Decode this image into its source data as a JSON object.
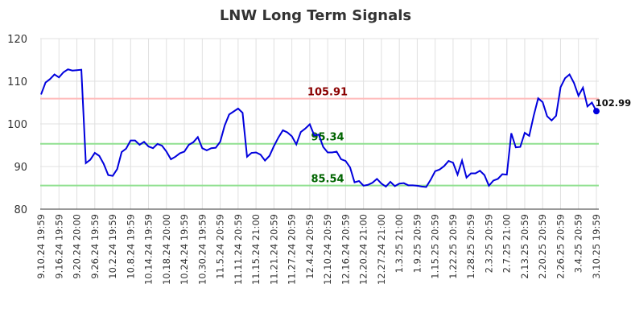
{
  "chart_data": {
    "type": "line",
    "title": "LNW Long Term Signals",
    "xlabel": "",
    "ylabel": "",
    "ylim": [
      80,
      120
    ],
    "yticks": [
      80,
      90,
      100,
      110,
      120
    ],
    "grid": true,
    "x_tick_labels": [
      "9.10.24 19:59",
      "9.16.24 19:59",
      "9.20.24 20:00",
      "9.26.24 19:59",
      "10.2.24 19:59",
      "10.8.24 19:59",
      "10.14.24 19:59",
      "10.18.24 20:00",
      "10.24.24 19:59",
      "10.30.24 19:59",
      "11.5.24 20:59",
      "11.11.24 20:59",
      "11.15.24 21:00",
      "11.21.24 20:59",
      "11.27.24 20:59",
      "12.4.24 20:59",
      "12.10.24 20:59",
      "12.16.24 20:59",
      "12.20.24 21:00",
      "12.27.24 21:00",
      "1.3.25 21:00",
      "1.9.25 20:59",
      "1.15.25 20:59",
      "1.22.25 20:59",
      "1.28.25 20:59",
      "2.3.25 20:59",
      "2.7.25 21:00",
      "2.13.25 20:59",
      "2.20.25 20:59",
      "2.26.25 20:59",
      "3.4.25 20:59",
      "3.10.25 19:59"
    ],
    "series": [
      {
        "color": "#0000dd",
        "values": [
          106.9,
          109.7,
          110.5,
          111.6,
          110.9,
          112.1,
          112.8,
          112.5,
          112.6,
          112.7,
          90.8,
          91.6,
          93.2,
          92.5,
          90.6,
          88.0,
          87.8,
          89.4,
          93.4,
          94.2,
          96.1,
          96.1,
          95.1,
          95.8,
          94.7,
          94.3,
          95.3,
          94.9,
          93.5,
          91.7,
          92.3,
          93.1,
          93.5,
          95.1,
          95.7,
          96.9,
          94.3,
          93.8,
          94.3,
          94.4,
          95.8,
          99.6,
          102.2,
          102.9,
          103.6,
          102.6,
          92.3,
          93.2,
          93.3,
          92.8,
          91.4,
          92.5,
          94.8,
          96.8,
          98.5,
          98.0,
          97.1,
          95.2,
          98.1,
          98.9,
          99.9,
          97.3,
          97.5,
          94.6,
          93.3,
          93.3,
          93.5,
          91.7,
          91.3,
          89.8,
          86.3,
          86.6,
          85.5,
          85.7,
          86.2,
          87.1,
          86.0,
          85.3,
          86.4,
          85.4,
          86.0,
          86.1,
          85.6,
          85.6,
          85.5,
          85.3,
          85.2,
          86.9,
          88.9,
          89.3,
          90.1,
          91.3,
          90.9,
          88.1,
          91.4,
          87.4,
          88.4,
          88.4,
          89.0,
          88.0,
          85.5,
          86.7,
          87.1,
          88.2,
          88.1,
          97.8,
          94.5,
          94.6,
          97.9,
          97.2,
          101.9,
          106.0,
          105.1,
          101.8,
          100.8,
          101.9,
          108.6,
          110.7,
          111.6,
          109.6,
          106.6,
          108.5,
          104.1,
          105.0,
          102.99
        ]
      }
    ],
    "last_value_label": "102.99",
    "hlines": [
      {
        "value": 105.91,
        "label": "105.91",
        "color": "#ffbbbb",
        "label_color": "#8b0000"
      },
      {
        "value": 95.34,
        "label": "95.34",
        "color": "#90e090",
        "label_color": "#006400"
      },
      {
        "value": 85.54,
        "label": "85.54",
        "color": "#90e090",
        "label_color": "#006400"
      }
    ]
  }
}
